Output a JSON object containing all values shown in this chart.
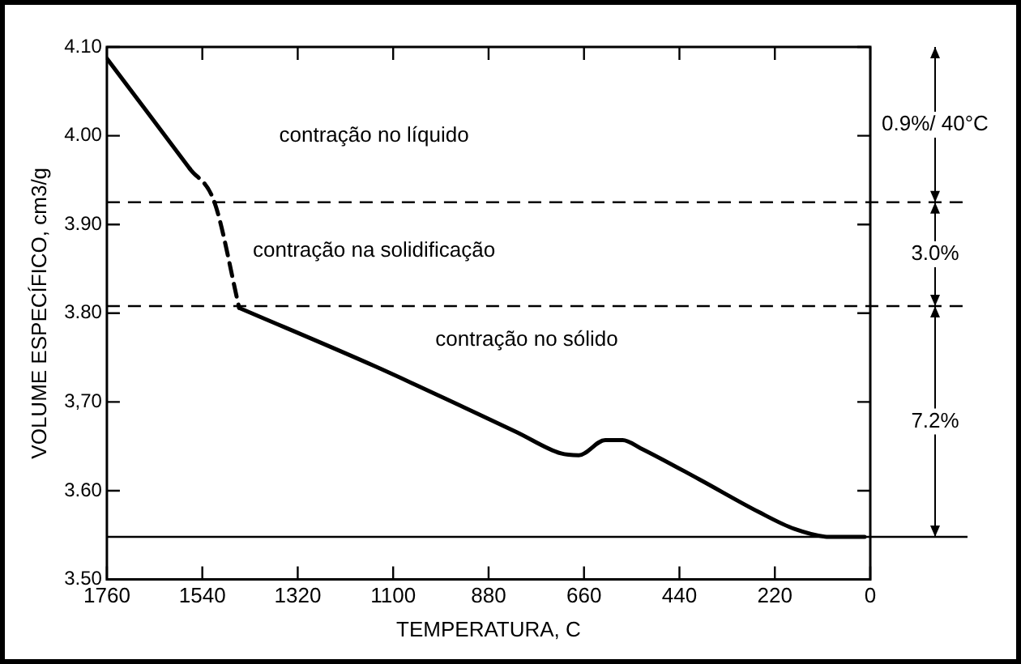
{
  "chart_data": {
    "type": "line",
    "xlabel": "TEMPERATURA, C",
    "ylabel": "VOLUME ESPECÍFICO, cm3/g",
    "xlim": [
      1760,
      0
    ],
    "xticks": [
      1760,
      1540,
      1320,
      1100,
      880,
      660,
      440,
      220,
      0
    ],
    "ylim": [
      3.5,
      4.1
    ],
    "yticks": [
      {
        "value": 3.5,
        "label": "3.50"
      },
      {
        "value": 3.6,
        "label": "3.60"
      },
      {
        "value": 3.7,
        "label": "3,70"
      },
      {
        "value": 3.8,
        "label": "3.80"
      },
      {
        "value": 3.9,
        "label": "3.90"
      },
      {
        "value": 4.0,
        "label": "4.00"
      },
      {
        "value": 4.1,
        "label": "4.10"
      }
    ],
    "grid": false,
    "legend": false,
    "marker": "none",
    "series": [
      {
        "color": "#000000",
        "line_style": "solid",
        "x": [
          1760,
          1569
        ],
        "values": [
          4.087,
          3.963
        ]
      },
      {
        "color": "#000000",
        "line_style": "dashed",
        "x": [
          1569,
          1512,
          1455
        ],
        "values": [
          3.963,
          3.925,
          3.806
        ]
      },
      {
        "color": "#000000",
        "line_style": "solid",
        "x": [
          1455,
          1141,
          937,
          815,
          713,
          672,
          611,
          571,
          530,
          395,
          257,
          175,
          94,
          13
        ],
        "values": [
          3.806,
          3.74,
          3.694,
          3.666,
          3.642,
          3.64,
          3.657,
          3.657,
          3.648,
          3.613,
          3.576,
          3.557,
          3.548,
          3.548
        ]
      }
    ],
    "ref_lines": [
      {
        "axis": "y",
        "value": 3.925,
        "line_style": "dashed",
        "color": "#000000"
      },
      {
        "axis": "y",
        "value": 3.808,
        "line_style": "dashed",
        "color": "#000000"
      },
      {
        "axis": "y",
        "value": 3.548,
        "line_style": "solid",
        "color": "#000000"
      }
    ],
    "annotations": [
      "contração no líquido",
      "contração na solidificação",
      "contração no sólido",
      "0.9%/ 40°C",
      "3.0%",
      "7.2%"
    ]
  }
}
